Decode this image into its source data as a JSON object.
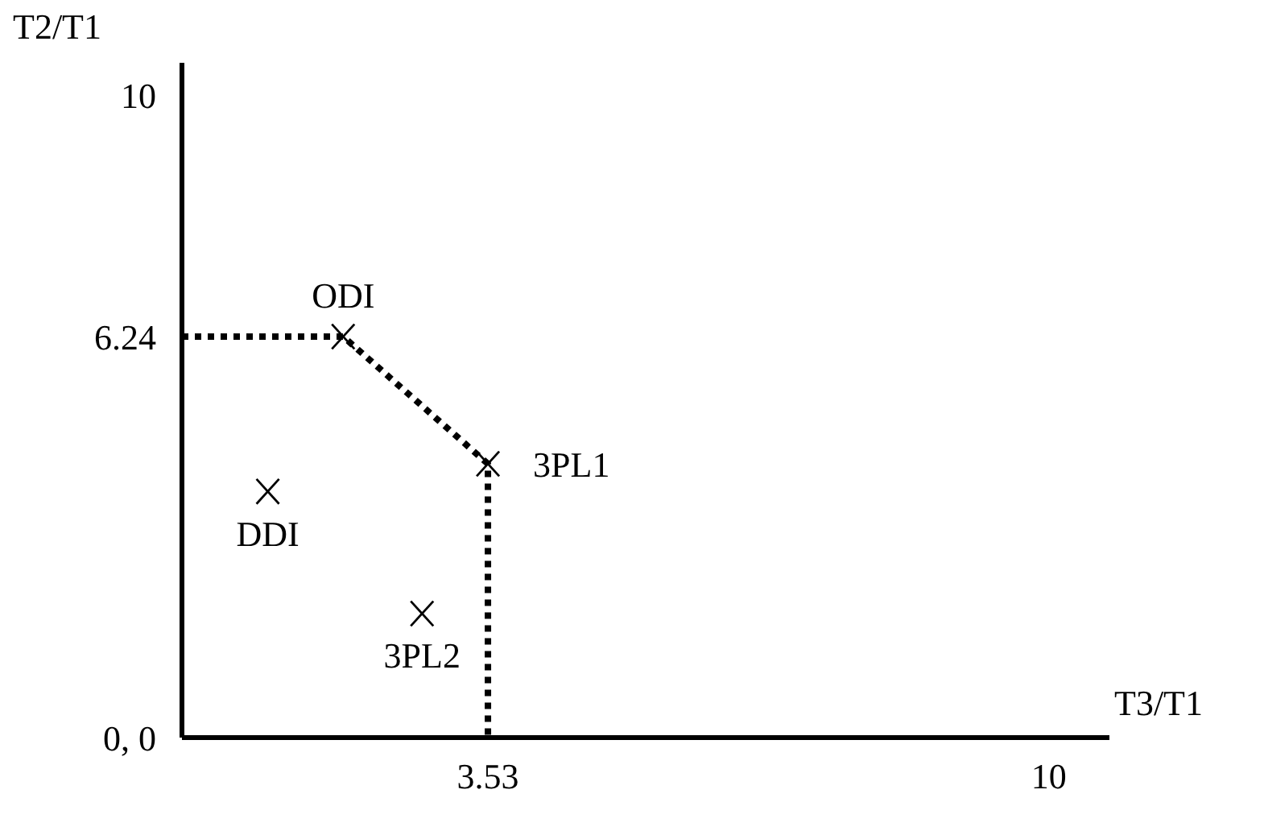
{
  "chart_data": {
    "type": "scatter",
    "xlabel": "T3/T1",
    "ylabel": "T2/T1",
    "xlim": [
      0,
      10.7
    ],
    "ylim": [
      0,
      10.5
    ],
    "xticks": [
      3.53,
      10
    ],
    "yticks": [
      {
        "value": 0,
        "label": "0, 0"
      },
      6.24,
      10
    ],
    "grid": false,
    "legend": false,
    "series": [
      {
        "color": "#000000",
        "marker": "cross",
        "x": [
          1.86,
          3.53,
          0.99,
          2.77
        ],
        "values": [
          6.24,
          4.26,
          3.83,
          1.93
        ]
      },
      {
        "type": "line",
        "color": "#000000",
        "line_style": "dotted",
        "x": [
          0,
          1.86,
          3.53,
          3.53
        ],
        "values": [
          6.24,
          6.24,
          4.26,
          0
        ]
      }
    ],
    "annotations": [
      {
        "text": "ODI",
        "x": 1.86,
        "y": 6.24
      },
      {
        "text": "3PL1",
        "x": 3.53,
        "y": 4.26
      },
      {
        "text": "DDI",
        "x": 0.99,
        "y": 3.83
      },
      {
        "text": "3PL2",
        "x": 2.77,
        "y": 1.93
      }
    ]
  }
}
